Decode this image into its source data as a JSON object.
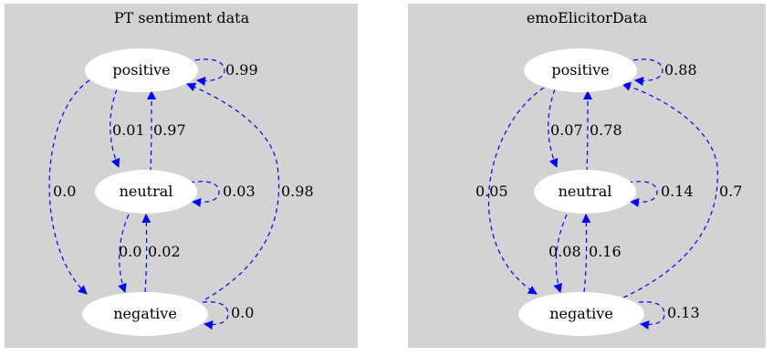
{
  "colors": {
    "cluster_fill": "#d3d3d3",
    "node_fill": "#ffffff",
    "edge": "#0000ff",
    "text": "#000000"
  },
  "clusters": [
    {
      "title": "PT sentiment data",
      "nodes": [
        "positive",
        "neutral",
        "negative"
      ],
      "edges": [
        {
          "from": "positive",
          "to": "positive",
          "label": "0.99"
        },
        {
          "from": "positive",
          "to": "neutral",
          "label": "0.01"
        },
        {
          "from": "neutral",
          "to": "positive",
          "label": "0.97"
        },
        {
          "from": "positive",
          "to": "negative",
          "label": "0.0"
        },
        {
          "from": "neutral",
          "to": "neutral",
          "label": "0.03"
        },
        {
          "from": "negative",
          "to": "positive",
          "label": "0.98"
        },
        {
          "from": "neutral",
          "to": "negative",
          "label": "0.0"
        },
        {
          "from": "negative",
          "to": "neutral",
          "label": "0.02"
        },
        {
          "from": "negative",
          "to": "negative",
          "label": "0.0"
        }
      ]
    },
    {
      "title": "emoElicitorData",
      "nodes": [
        "positive",
        "neutral",
        "negative"
      ],
      "edges": [
        {
          "from": "positive",
          "to": "positive",
          "label": "0.88"
        },
        {
          "from": "positive",
          "to": "neutral",
          "label": "0.07"
        },
        {
          "from": "neutral",
          "to": "positive",
          "label": "0.78"
        },
        {
          "from": "positive",
          "to": "negative",
          "label": "0.05"
        },
        {
          "from": "neutral",
          "to": "neutral",
          "label": "0.14"
        },
        {
          "from": "negative",
          "to": "positive",
          "label": "0.7"
        },
        {
          "from": "neutral",
          "to": "negative",
          "label": "0.08"
        },
        {
          "from": "negative",
          "to": "neutral",
          "label": "0.16"
        },
        {
          "from": "negative",
          "to": "negative",
          "label": "0.13"
        }
      ]
    }
  ]
}
